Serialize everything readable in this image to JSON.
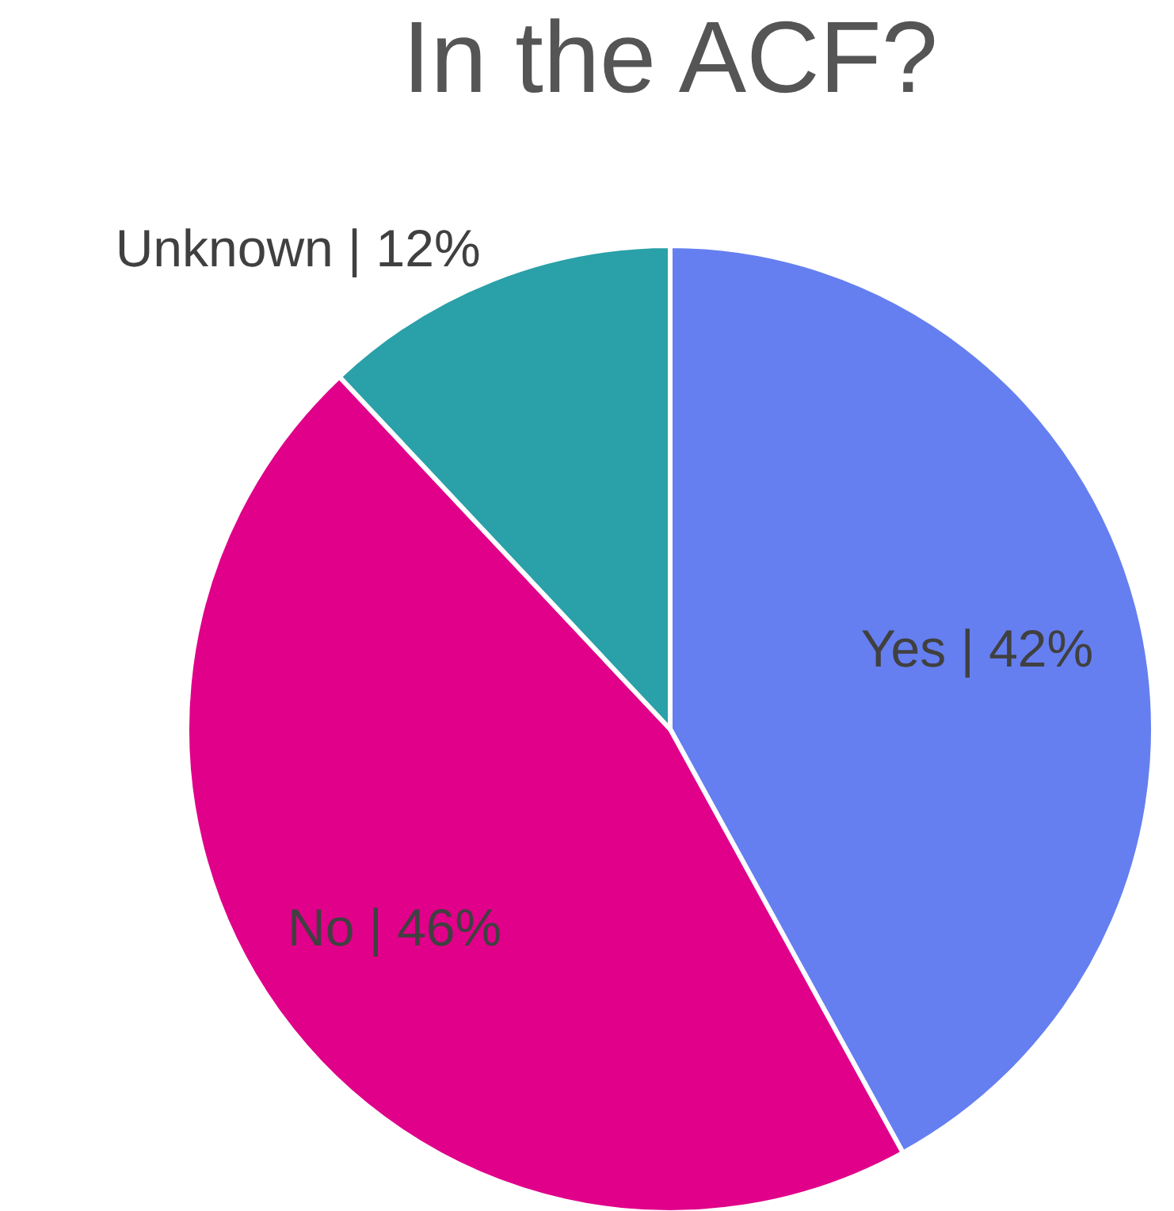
{
  "chart_data": {
    "type": "pie",
    "title": "In the ACF?",
    "categories": [
      "Yes",
      "No",
      "Unknown"
    ],
    "values": [
      42,
      46,
      12
    ],
    "colors": [
      "#657ff0",
      "#e0008a",
      "#2aa0a8"
    ],
    "value_labels": [
      "| 42%",
      "| 46%",
      "| 12%"
    ]
  }
}
